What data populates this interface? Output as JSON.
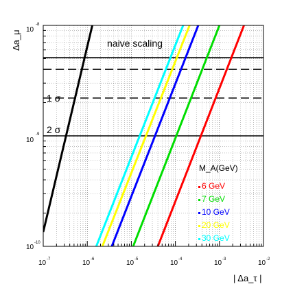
{
  "chart_data": {
    "type": "line",
    "xlabel": "| Δa_τ |",
    "ylabel": "Δa_μ",
    "xscale": "log",
    "yscale": "log",
    "xlim": [
      1e-07,
      0.01
    ],
    "ylim": [
      1e-10,
      1e-08
    ],
    "grid": true,
    "x_ticks": [
      {
        "base": "10",
        "exp": "-7"
      },
      {
        "base": "10",
        "exp": "-6"
      },
      {
        "base": "10",
        "exp": "-5"
      },
      {
        "base": "10",
        "exp": "-4"
      },
      {
        "base": "10",
        "exp": "-3"
      },
      {
        "base": "10",
        "exp": "-2"
      }
    ],
    "y_ticks": [
      {
        "base": "10",
        "exp": "-10"
      },
      {
        "base": "10",
        "exp": "-9"
      },
      {
        "base": "10",
        "exp": "-8"
      }
    ],
    "scaling_line": {
      "label": "naive scaling",
      "color": "#000000",
      "x": [
        1e-07,
        1.3e-06
      ],
      "y": [
        1.35e-10,
        1e-08
      ]
    },
    "series": [
      {
        "name": "6 GeV",
        "color": "#ff0000",
        "x": [
          4e-05,
          0.0036
        ],
        "y": [
          1e-10,
          1e-08
        ]
      },
      {
        "name": "7 GeV",
        "color": "#00dd00",
        "x": [
          1.1e-05,
          0.001
        ],
        "y": [
          1e-10,
          1e-08
        ]
      },
      {
        "name": "10 GeV",
        "color": "#0000ff",
        "x": [
          3.6e-06,
          0.00033
        ],
        "y": [
          1e-10,
          1e-08
        ]
      },
      {
        "name": "20 GeV",
        "color": "#ffff00",
        "x": [
          2.2e-06,
          0.00021
        ],
        "y": [
          1e-10,
          1e-08
        ]
      },
      {
        "name": "30 GeV",
        "color": "#00ffff",
        "x": [
          1.6e-06,
          0.00015
        ],
        "y": [
          1e-10,
          1e-08
        ]
      }
    ],
    "horizontal_lines": [
      {
        "y": 5.1e-09,
        "style": "solid"
      },
      {
        "y": 4e-09,
        "style": "dashed"
      },
      {
        "y": 2.2e-09,
        "style": "dashed"
      },
      {
        "y": 1e-09,
        "style": "solid"
      }
    ],
    "annotations": [
      {
        "text": "naive scaling"
      },
      {
        "text": "1 σ"
      },
      {
        "text": "2 σ"
      }
    ],
    "legend": {
      "title": "M_A(GeV)",
      "placement": "bottom-right"
    }
  }
}
